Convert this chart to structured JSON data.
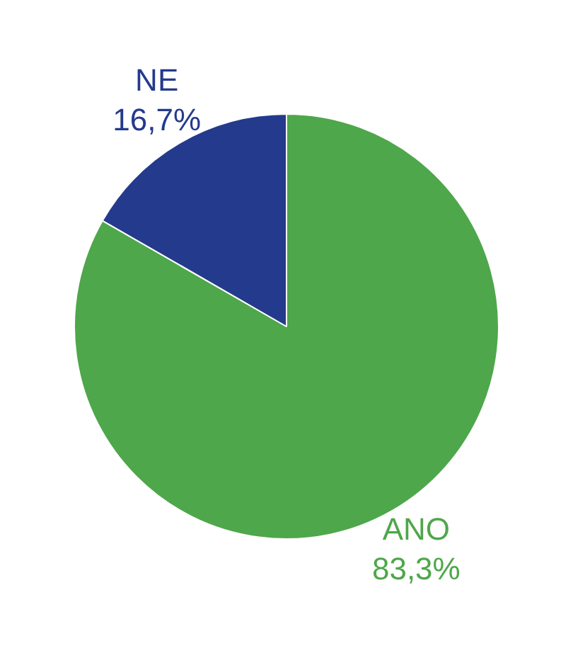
{
  "chart_data": {
    "type": "pie",
    "categories": [
      "ANO",
      "NE"
    ],
    "values": [
      83.3,
      16.7
    ],
    "colors": [
      "#4ea74a",
      "#243a8c"
    ],
    "value_labels": [
      "83,3%",
      "16,7%"
    ],
    "legend": false
  }
}
